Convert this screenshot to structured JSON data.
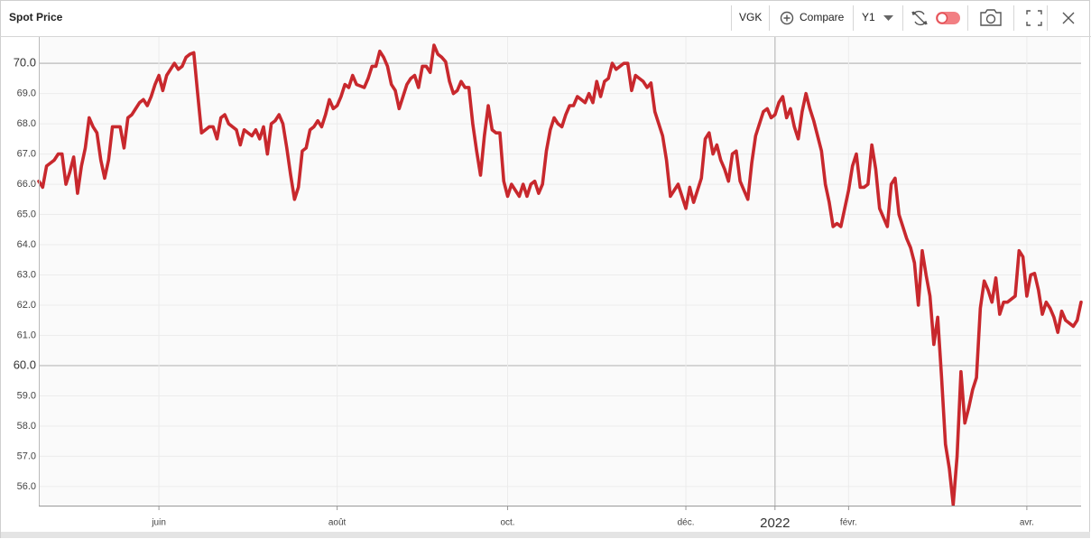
{
  "header": {
    "title": "Spot Price",
    "ticker": "VGK",
    "compare": "Compare",
    "period": "Y1"
  },
  "chart_data": {
    "type": "line",
    "color": "#c8282d",
    "grid": true,
    "ylim": [
      55.37,
      70.9
    ],
    "yticks": [
      {
        "value": 56,
        "label": "56.0"
      },
      {
        "value": 57,
        "label": "57.0"
      },
      {
        "value": 58,
        "label": "58.0"
      },
      {
        "value": 59,
        "label": "59.0"
      },
      {
        "value": 60,
        "label": "60.0"
      },
      {
        "value": 61,
        "label": "61.0"
      },
      {
        "value": 62,
        "label": "62.0"
      },
      {
        "value": 63,
        "label": "63.0"
      },
      {
        "value": 64,
        "label": "64.0"
      },
      {
        "value": 65,
        "label": "65.0"
      },
      {
        "value": 66,
        "label": "66.0"
      },
      {
        "value": 67,
        "label": "67.0"
      },
      {
        "value": 68,
        "label": "68.0"
      },
      {
        "value": 69,
        "label": "69.0"
      },
      {
        "value": 70,
        "label": "70.0"
      }
    ],
    "categories": [
      null,
      null,
      null,
      null,
      null,
      null,
      null,
      null,
      null,
      null,
      null,
      null,
      null,
      null,
      null,
      null,
      null,
      null,
      null,
      null,
      null,
      null,
      null,
      null,
      null,
      null,
      null,
      null,
      null,
      null,
      null,
      "juin",
      null,
      null,
      null,
      null,
      null,
      null,
      null,
      null,
      null,
      null,
      null,
      null,
      null,
      null,
      null,
      null,
      null,
      null,
      null,
      null,
      null,
      null,
      null,
      null,
      null,
      null,
      null,
      null,
      null,
      null,
      null,
      null,
      null,
      null,
      null,
      null,
      null,
      null,
      null,
      null,
      null,
      null,
      null,
      null,
      null,
      "août",
      null,
      null,
      null,
      null,
      null,
      null,
      null,
      null,
      null,
      null,
      null,
      null,
      null,
      null,
      null,
      null,
      null,
      null,
      null,
      null,
      null,
      null,
      null,
      null,
      null,
      null,
      null,
      null,
      null,
      null,
      null,
      null,
      null,
      null,
      null,
      null,
      null,
      null,
      null,
      null,
      null,
      null,
      null,
      "oct.",
      null,
      null,
      null,
      null,
      null,
      null,
      null,
      null,
      null,
      null,
      null,
      null,
      null,
      null,
      null,
      null,
      null,
      null,
      null,
      null,
      null,
      null,
      null,
      null,
      null,
      null,
      null,
      null,
      null,
      null,
      null,
      null,
      null,
      null,
      null,
      null,
      null,
      null,
      null,
      null,
      null,
      null,
      null,
      null,
      null,
      "déc.",
      null,
      null,
      null,
      null,
      null,
      null,
      null,
      null,
      null,
      null,
      null,
      null,
      null,
      null,
      null,
      null,
      null,
      null,
      null,
      null,
      null,
      null,
      "2022",
      null,
      null,
      null,
      null,
      null,
      null,
      null,
      null,
      null,
      null,
      null,
      null,
      null,
      null,
      null,
      null,
      null,
      null,
      "févr.",
      null,
      null,
      null,
      null,
      null,
      null,
      null,
      null,
      null,
      null,
      null,
      null,
      null,
      null,
      null,
      null,
      null,
      null,
      null,
      null,
      null,
      null,
      null,
      null,
      null,
      null,
      null,
      null,
      null,
      null,
      null,
      null,
      null,
      null,
      null,
      null,
      null,
      null,
      null,
      null,
      null,
      null,
      null,
      null,
      null,
      "avr.",
      null,
      null,
      null,
      null,
      null,
      null,
      null,
      null,
      null,
      null,
      null,
      null,
      null,
      null
    ],
    "values": [
      66.1,
      65.9,
      66.6,
      66.7,
      66.8,
      67.0,
      67.0,
      66.0,
      66.4,
      66.9,
      65.7,
      66.6,
      67.2,
      68.2,
      67.9,
      67.7,
      66.8,
      66.2,
      66.8,
      67.9,
      67.9,
      67.9,
      67.2,
      68.2,
      68.3,
      68.5,
      68.7,
      68.8,
      68.6,
      68.9,
      69.3,
      69.6,
      69.1,
      69.6,
      69.8,
      70.0,
      69.8,
      69.9,
      70.2,
      70.3,
      70.35,
      69.0,
      67.7,
      67.8,
      67.9,
      67.9,
      67.5,
      68.2,
      68.3,
      68.0,
      67.9,
      67.8,
      67.3,
      67.8,
      67.7,
      67.6,
      67.8,
      67.5,
      67.9,
      67.0,
      68.0,
      68.1,
      68.3,
      68.0,
      67.2,
      66.3,
      65.5,
      65.9,
      67.1,
      67.2,
      67.8,
      67.9,
      68.1,
      67.9,
      68.3,
      68.8,
      68.5,
      68.6,
      68.9,
      69.3,
      69.2,
      69.6,
      69.3,
      69.25,
      69.2,
      69.5,
      69.9,
      69.9,
      70.4,
      70.2,
      69.9,
      69.3,
      69.1,
      68.5,
      68.9,
      69.3,
      69.5,
      69.6,
      69.2,
      69.9,
      69.9,
      69.7,
      70.6,
      70.3,
      70.2,
      70.05,
      69.4,
      69.0,
      69.1,
      69.4,
      69.2,
      69.2,
      68.0,
      67.1,
      66.3,
      67.6,
      68.6,
      67.8,
      67.7,
      67.7,
      66.1,
      65.6,
      66.0,
      65.8,
      65.6,
      66.0,
      65.6,
      66.0,
      66.1,
      65.7,
      66.0,
      67.1,
      67.8,
      68.2,
      68.0,
      67.9,
      68.3,
      68.6,
      68.6,
      68.9,
      68.8,
      68.7,
      69.0,
      68.7,
      69.4,
      68.9,
      69.4,
      69.5,
      70.0,
      69.8,
      69.9,
      70.0,
      70.0,
      69.1,
      69.6,
      69.5,
      69.4,
      69.2,
      69.35,
      68.4,
      68.0,
      67.6,
      66.8,
      65.6,
      65.8,
      66.0,
      65.6,
      65.2,
      65.9,
      65.4,
      65.8,
      66.2,
      67.5,
      67.7,
      67.0,
      67.3,
      66.8,
      66.5,
      66.1,
      67.0,
      67.1,
      66.1,
      65.8,
      65.5,
      66.7,
      67.6,
      68.0,
      68.4,
      68.5,
      68.2,
      68.3,
      68.7,
      68.9,
      68.2,
      68.5,
      67.9,
      67.5,
      68.4,
      69.0,
      68.5,
      68.1,
      67.6,
      67.1,
      66.0,
      65.4,
      64.6,
      64.7,
      64.6,
      65.2,
      65.8,
      66.6,
      67.0,
      65.9,
      65.9,
      66.0,
      67.3,
      66.5,
      65.2,
      64.9,
      64.6,
      66.0,
      66.2,
      65.0,
      64.6,
      64.2,
      63.9,
      63.4,
      62.0,
      63.8,
      63.0,
      62.3,
      60.7,
      61.6,
      59.6,
      57.4,
      56.6,
      55.4,
      57.0,
      59.8,
      58.1,
      58.6,
      59.2,
      59.6,
      61.9,
      62.8,
      62.5,
      62.1,
      62.9,
      61.7,
      62.1,
      62.1,
      62.2,
      62.3,
      63.8,
      63.6,
      62.3,
      63.0,
      63.05,
      62.5,
      61.7,
      62.1,
      61.9,
      61.6,
      61.1,
      61.8,
      61.5,
      61.4,
      61.3,
      61.5,
      62.1
    ]
  }
}
